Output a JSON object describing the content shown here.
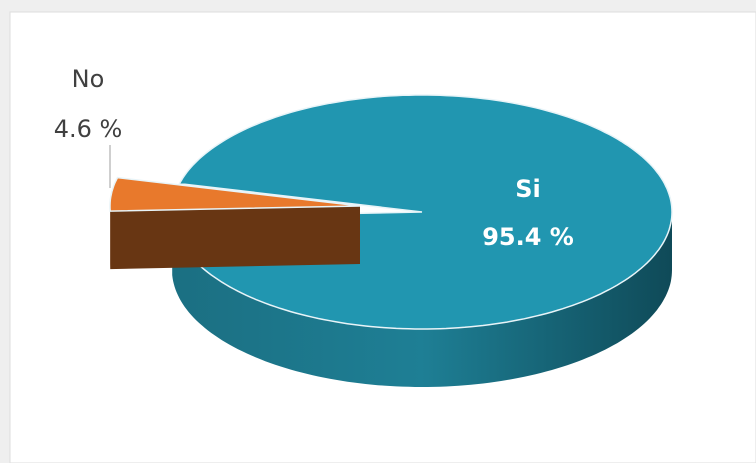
{
  "chart_data": {
    "type": "pie3d",
    "categories": [
      "Si",
      "No"
    ],
    "values": [
      95.4,
      4.6
    ],
    "value_labels": [
      "95.4 %",
      "4.6 %"
    ],
    "colors": [
      "#2196b0",
      "#e8792c"
    ]
  }
}
